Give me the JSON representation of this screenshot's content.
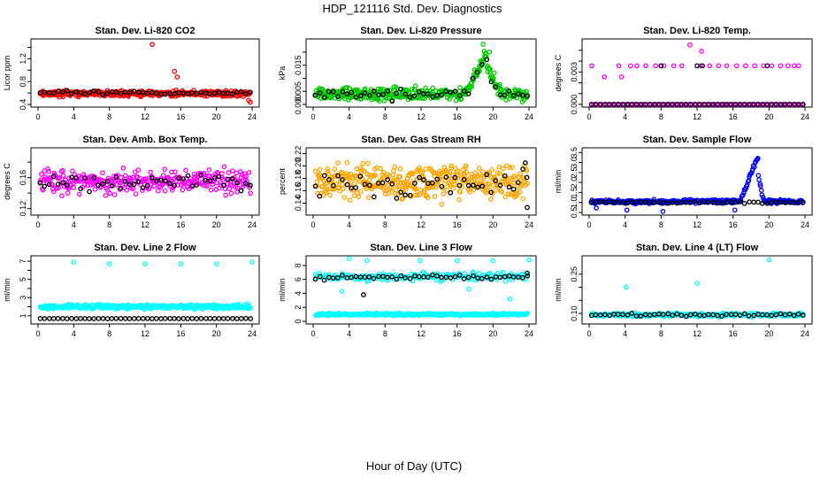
{
  "figure": {
    "title": "HDP_121116  Std. Dev. Diagnostics",
    "xlabel": "Hour of Day (UTC)"
  },
  "chart_data": [
    {
      "id": "co2",
      "type": "scatter",
      "title": "Stan. Dev. Li-820 CO2",
      "ylabel": "Licor ppm",
      "xlim": [
        0,
        24
      ],
      "ylim": [
        0.4,
        1.5
      ],
      "xticks": [
        0,
        4,
        8,
        12,
        16,
        20,
        24
      ],
      "yticks": [
        0.4,
        0.6,
        0.8,
        1.0,
        1.2,
        1.4
      ],
      "ytick_labels": [
        "0.4",
        "",
        "0.8",
        "",
        "1.2",
        ""
      ],
      "series": [
        {
          "name": "dense",
          "color": "#ff0000",
          "n": 380,
          "base": 0.59,
          "spread": 0.07,
          "outliers": [
            [
              12.8,
              1.45
            ],
            [
              15.3,
              0.98
            ],
            [
              15.6,
              0.88
            ],
            [
              23.6,
              0.47
            ],
            [
              23.8,
              0.44
            ]
          ]
        },
        {
          "name": "hourly",
          "color": "#000000",
          "n": 48,
          "base": 0.6,
          "spread": 0.05,
          "outliers": []
        }
      ]
    },
    {
      "id": "pressure",
      "type": "scatter",
      "title": "Stan. Dev. Li-820 Pressure",
      "ylabel": "kPa",
      "xlim": [
        0,
        24
      ],
      "ylim": [
        0.0,
        0.024
      ],
      "xticks": [
        0,
        4,
        8,
        12,
        16,
        20,
        24
      ],
      "yticks": [
        0.0,
        0.005,
        0.01,
        0.015,
        0.02
      ],
      "ytick_labels": [
        "0.000",
        "0.005",
        "",
        "0.015",
        ""
      ],
      "series": [
        {
          "name": "dense",
          "color": "#00cc00",
          "n": 380,
          "base": 0.004,
          "spread": 0.0035,
          "ramp": {
            "start": 17,
            "peak": 19.3,
            "end": 21,
            "height": 0.016
          },
          "outliers": [
            [
              18.9,
              0.023
            ],
            [
              19.6,
              0.02
            ]
          ]
        },
        {
          "name": "hourly",
          "color": "#000000",
          "n": 48,
          "base": 0.004,
          "spread": 0.003,
          "ramp": {
            "start": 17,
            "peak": 19.3,
            "end": 21,
            "height": 0.013
          },
          "outliers": []
        }
      ]
    },
    {
      "id": "temp",
      "type": "scatter",
      "title": "Stan. Dev. Li-820 Temp.",
      "ylabel": "degrees C",
      "xlim": [
        0,
        24
      ],
      "ylim": [
        0.0,
        0.0058
      ],
      "xticks": [
        0,
        4,
        8,
        12,
        16,
        20,
        24
      ],
      "yticks": [
        0.0,
        0.001,
        0.002,
        0.003,
        0.004,
        0.005
      ],
      "ytick_labels": [
        "0.000",
        "",
        "",
        "0.003",
        "",
        ""
      ],
      "series": [
        {
          "name": "zero",
          "color": "#ff00ff",
          "n": 110,
          "base": 0.0,
          "spread": 0.0,
          "outliers": []
        },
        {
          "name": "upper",
          "color": "#ff00ff",
          "n": 0,
          "base": 0.0,
          "spread": 0.0,
          "outliers": [
            [
              0.3,
              0.00357
            ],
            [
              1.7,
              0.00255
            ],
            [
              3.3,
              0.00357
            ],
            [
              3.6,
              0.00255
            ],
            [
              4.6,
              0.00357
            ],
            [
              5.3,
              0.00357
            ],
            [
              6.3,
              0.00357
            ],
            [
              7.4,
              0.00357
            ],
            [
              8.3,
              0.00357
            ],
            [
              9.4,
              0.00357
            ],
            [
              10.3,
              0.00357
            ],
            [
              11.2,
              0.0055
            ],
            [
              12.4,
              0.00357
            ],
            [
              13.4,
              0.00357
            ],
            [
              14.4,
              0.00357
            ],
            [
              15.3,
              0.00357
            ],
            [
              16.4,
              0.00357
            ],
            [
              17.4,
              0.00357
            ],
            [
              18.4,
              0.00357
            ],
            [
              19.4,
              0.00357
            ],
            [
              20.3,
              0.00357
            ],
            [
              21.3,
              0.00357
            ],
            [
              22.1,
              0.00357
            ],
            [
              22.8,
              0.00357
            ],
            [
              23.3,
              0.00357
            ],
            [
              12.5,
              0.0049
            ]
          ]
        },
        {
          "name": "hourly-zero",
          "color": "#000000",
          "n": 48,
          "base": 0.0,
          "spread": 0.0,
          "outliers": []
        },
        {
          "name": "hourly-upper",
          "color": "#000000",
          "n": 0,
          "base": 0.0,
          "spread": 0.0,
          "outliers": [
            [
              8.0,
              0.00357
            ],
            [
              12.0,
              0.00357
            ],
            [
              12.6,
              0.00357
            ],
            [
              19.8,
              0.00357
            ]
          ]
        }
      ]
    },
    {
      "id": "boxtemp",
      "type": "scatter",
      "title": "Stan. Dev. Amb. Box Temp.",
      "ylabel": "degrees C",
      "xlim": [
        0,
        24
      ],
      "ylim": [
        0.115,
        0.195
      ],
      "xticks": [
        0,
        4,
        8,
        12,
        16,
        20,
        24
      ],
      "yticks": [
        0.12,
        0.14,
        0.16,
        0.18
      ],
      "ytick_labels": [
        "0.12",
        "",
        "0.16",
        ""
      ],
      "series": [
        {
          "name": "dense",
          "color": "#ff00ff",
          "n": 300,
          "base": 0.155,
          "spread": 0.022,
          "outliers": []
        },
        {
          "name": "hourly",
          "color": "#000000",
          "n": 48,
          "base": 0.155,
          "spread": 0.018,
          "outliers": []
        }
      ]
    },
    {
      "id": "rh",
      "type": "scatter",
      "title": "Stan. Dev. Gas Stream RH",
      "ylabel": "percent",
      "xlim": [
        0,
        24
      ],
      "ylim": [
        0.125,
        0.225
      ],
      "xticks": [
        0,
        4,
        8,
        12,
        16,
        20,
        24
      ],
      "yticks": [
        0.14,
        0.16,
        0.18,
        0.2,
        0.22
      ],
      "ytick_labels": [
        "0.14",
        "0.16",
        "0.18",
        "0.20",
        "0.22"
      ],
      "series": [
        {
          "name": "dense",
          "color": "#ffa500",
          "n": 380,
          "base": 0.175,
          "spread": 0.04,
          "outliers": []
        },
        {
          "name": "hourly",
          "color": "#000000",
          "n": 48,
          "base": 0.17,
          "spread": 0.03,
          "outliers": [
            [
              23.8,
              0.133
            ],
            [
              23.6,
              0.205
            ]
          ]
        }
      ]
    },
    {
      "id": "sampleflow",
      "type": "scatter",
      "title": "Stan. Dev. Sample Flow",
      "ylabel": "ml/min",
      "xlim": [
        0,
        24
      ],
      "ylim": [
        0.5,
        3.6
      ],
      "xticks": [
        0,
        4,
        8,
        12,
        16,
        20,
        24
      ],
      "yticks": [
        0.5,
        1.0,
        1.5,
        2.0,
        2.5,
        3.0,
        3.5
      ],
      "ytick_labels": [
        "0.5",
        "1.0",
        "1.5",
        "2.0",
        "2.5",
        "3.0",
        "3.5"
      ],
      "series": [
        {
          "name": "dense",
          "color": "#0000ff",
          "n": 300,
          "base": 1.05,
          "spread": 0.14,
          "ramp": {
            "start": 16.8,
            "peak": 18.8,
            "end": 19.4,
            "height": 2.3
          },
          "outliers": [
            [
              0.8,
              0.72
            ],
            [
              4.2,
              0.62
            ],
            [
              8.2,
              0.55
            ],
            [
              16.2,
              0.62
            ]
          ]
        },
        {
          "name": "hourly",
          "color": "#000000",
          "n": 48,
          "base": 1.0,
          "spread": 0.08,
          "outliers": []
        }
      ]
    },
    {
      "id": "line2",
      "type": "scatter",
      "title": "Stan. Dev. Line 2 Flow",
      "ylabel": "ml/min",
      "xlim": [
        0,
        24
      ],
      "ylim": [
        0.4,
        7.3
      ],
      "xticks": [
        0,
        4,
        8,
        12,
        16,
        20,
        24
      ],
      "yticks": [
        1,
        2,
        3,
        4,
        5,
        6,
        7
      ],
      "ytick_labels": [
        "1",
        "",
        "3",
        "",
        "5",
        "",
        "7"
      ],
      "series": [
        {
          "name": "dense",
          "color": "#00ffff",
          "n": 380,
          "base": 2.0,
          "spread": 0.35,
          "outliers": [
            [
              4.0,
              6.9
            ],
            [
              8.0,
              6.7
            ],
            [
              12.0,
              6.7
            ],
            [
              16.0,
              6.7
            ],
            [
              20.0,
              6.7
            ],
            [
              24.0,
              6.9
            ]
          ]
        },
        {
          "name": "hourly",
          "color": "#000000",
          "n": 48,
          "base": 0.7,
          "spread": 0.02,
          "outliers": []
        }
      ]
    },
    {
      "id": "line3",
      "type": "scatter",
      "title": "Stan. Dev. Line 3 Flow",
      "ylabel": "ml/min",
      "xlim": [
        0,
        24
      ],
      "ylim": [
        0,
        9
      ],
      "xticks": [
        0,
        4,
        8,
        12,
        16,
        20,
        24
      ],
      "yticks": [
        0,
        2,
        4,
        6,
        8
      ],
      "ytick_labels": [
        "0",
        "2",
        "4",
        "6",
        "8"
      ],
      "series": [
        {
          "name": "lower",
          "color": "#00ffff",
          "n": 300,
          "base": 1.0,
          "spread": 0.25,
          "outliers": []
        },
        {
          "name": "upper",
          "color": "#00ffff",
          "n": 160,
          "base": 6.4,
          "spread": 0.9,
          "outliers": [
            [
              4.0,
              9.0
            ],
            [
              6.0,
              8.7
            ],
            [
              11.9,
              8.7
            ],
            [
              16.0,
              8.7
            ],
            [
              20.0,
              8.7
            ],
            [
              24.0,
              8.8
            ],
            [
              17.3,
              4.6
            ],
            [
              21.9,
              3.2
            ],
            [
              3.2,
              4.3
            ]
          ]
        },
        {
          "name": "hourly",
          "color": "#000000",
          "n": 48,
          "base": 6.3,
          "spread": 0.5,
          "outliers": [
            [
              5.6,
              3.8
            ],
            [
              23.8,
              6.9
            ]
          ]
        }
      ]
    },
    {
      "id": "line4",
      "type": "scatter",
      "title": "Stan. Dev. Line 4 (LT) Flow",
      "ylabel": "ml/min",
      "xlim": [
        0,
        24
      ],
      "ylim": [
        0.07,
        0.31
      ],
      "xticks": [
        0,
        4,
        8,
        12,
        16,
        20,
        24
      ],
      "yticks": [
        0.1,
        0.15,
        0.2,
        0.25
      ],
      "ytick_labels": [
        "0.10",
        "",
        "",
        "0.25"
      ],
      "series": [
        {
          "name": "dense",
          "color": "#00ffff",
          "n": 260,
          "base": 0.095,
          "spread": 0.01,
          "outliers": [
            [
              4.1,
              0.2
            ],
            [
              12.0,
              0.215
            ],
            [
              20.0,
              0.305
            ]
          ]
        },
        {
          "name": "hourly",
          "color": "#000000",
          "n": 48,
          "base": 0.095,
          "spread": 0.008,
          "outliers": []
        }
      ]
    }
  ]
}
